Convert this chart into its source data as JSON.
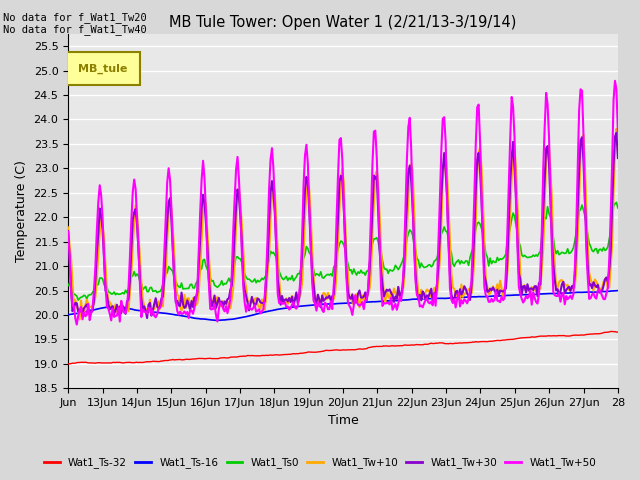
{
  "title": "MB Tule Tower: Open Water 1 (2/21/13-3/19/14)",
  "xlabel": "Time",
  "ylabel": "Temperature (C)",
  "ylim": [
    18.5,
    25.75
  ],
  "xlim": [
    0,
    16
  ],
  "xtick_labels": [
    "Jun",
    "13Jun",
    "14Jun",
    "15Jun",
    "16Jun",
    "17Jun",
    "18Jun",
    "19Jun",
    "20Jun",
    "21Jun",
    "22Jun",
    "23Jun",
    "24Jun",
    "25Jun",
    "26Jun",
    "27Jun",
    "28"
  ],
  "ytick_values": [
    18.5,
    19.0,
    19.5,
    20.0,
    20.5,
    21.0,
    21.5,
    22.0,
    22.5,
    23.0,
    23.5,
    24.0,
    24.5,
    25.0,
    25.5
  ],
  "bg_color": "#e8e8e8",
  "grid_color": "#ffffff",
  "annotation_text": "No data for f_Wat1_Tw20\nNo data for f_Wat1_Tw40",
  "legend_box_text": "MB_tule",
  "legend_box_color": "#ffff99",
  "legend_box_border": "#8B8000",
  "fig_bg": "#d8d8d8",
  "series": {
    "Wat1_Ts-32": {
      "color": "#ff0000",
      "lw": 1.0
    },
    "Wat1_Ts-16": {
      "color": "#0000ff",
      "lw": 1.2
    },
    "Wat1_Ts0": {
      "color": "#00cc00",
      "lw": 1.2
    },
    "Wat1_Tw+10": {
      "color": "#ffaa00",
      "lw": 1.5
    },
    "Wat1_Tw+30": {
      "color": "#8800cc",
      "lw": 1.5
    },
    "Wat1_Tw+50": {
      "color": "#ff00ff",
      "lw": 1.5
    }
  }
}
